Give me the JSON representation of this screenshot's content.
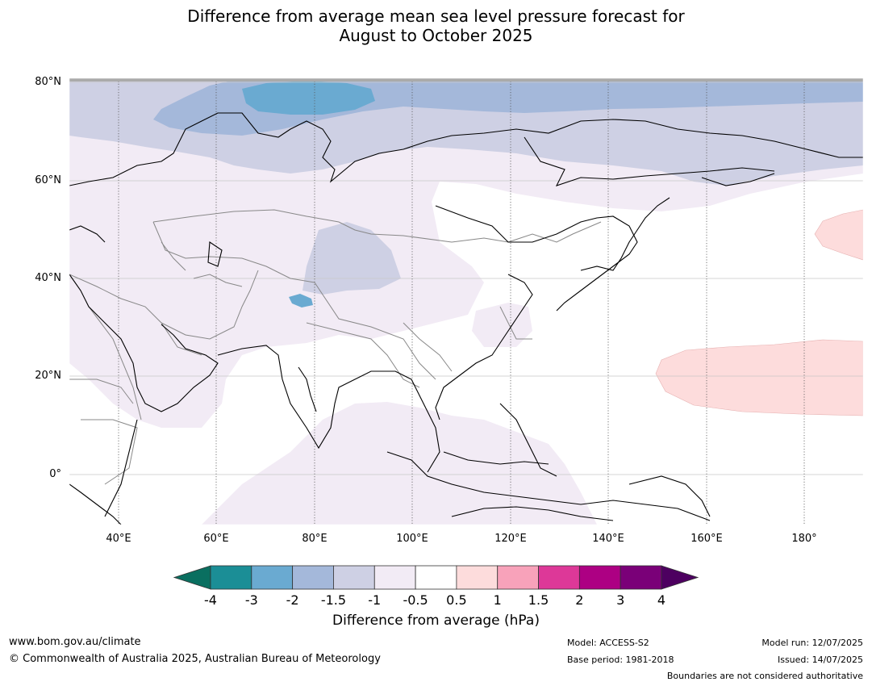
{
  "title": {
    "line1": "Difference from average mean sea level pressure forecast for",
    "line2": "August to October 2025"
  },
  "map": {
    "lat_labels": [
      "80°N",
      "60°N",
      "40°N",
      "20°N",
      "0°"
    ],
    "lon_labels": [
      "40°E",
      "60°E",
      "80°E",
      "100°E",
      "120°E",
      "140°E",
      "160°E",
      "180°"
    ]
  },
  "colorbar": {
    "ticks": [
      "-4",
      "-3",
      "-2",
      "-1.5",
      "-1",
      "-0.5",
      "0.5",
      "1",
      "1.5",
      "2",
      "3",
      "4"
    ],
    "colors": [
      "#0a6f60",
      "#1b8e96",
      "#6aaad1",
      "#a4b8da",
      "#ced0e4",
      "#f2ebf5",
      "#ffffff",
      "#fddcdc",
      "#f8a2ba",
      "#dd3898",
      "#ad0083",
      "#7a0078",
      "#4d0060"
    ],
    "label": "Difference from average (hPa)"
  },
  "footer": {
    "website": "www.bom.gov.au/climate",
    "copyright": "© Commonwealth of Australia 2025, Australian Bureau of Meteorology",
    "model": "Model: ACCESS-S2",
    "base_period": "Base period: 1981-2018",
    "model_run": "Model run: 12/07/2025",
    "issued": "Issued: 14/07/2025",
    "boundaries_note": "Boundaries are not considered authoritative"
  }
}
